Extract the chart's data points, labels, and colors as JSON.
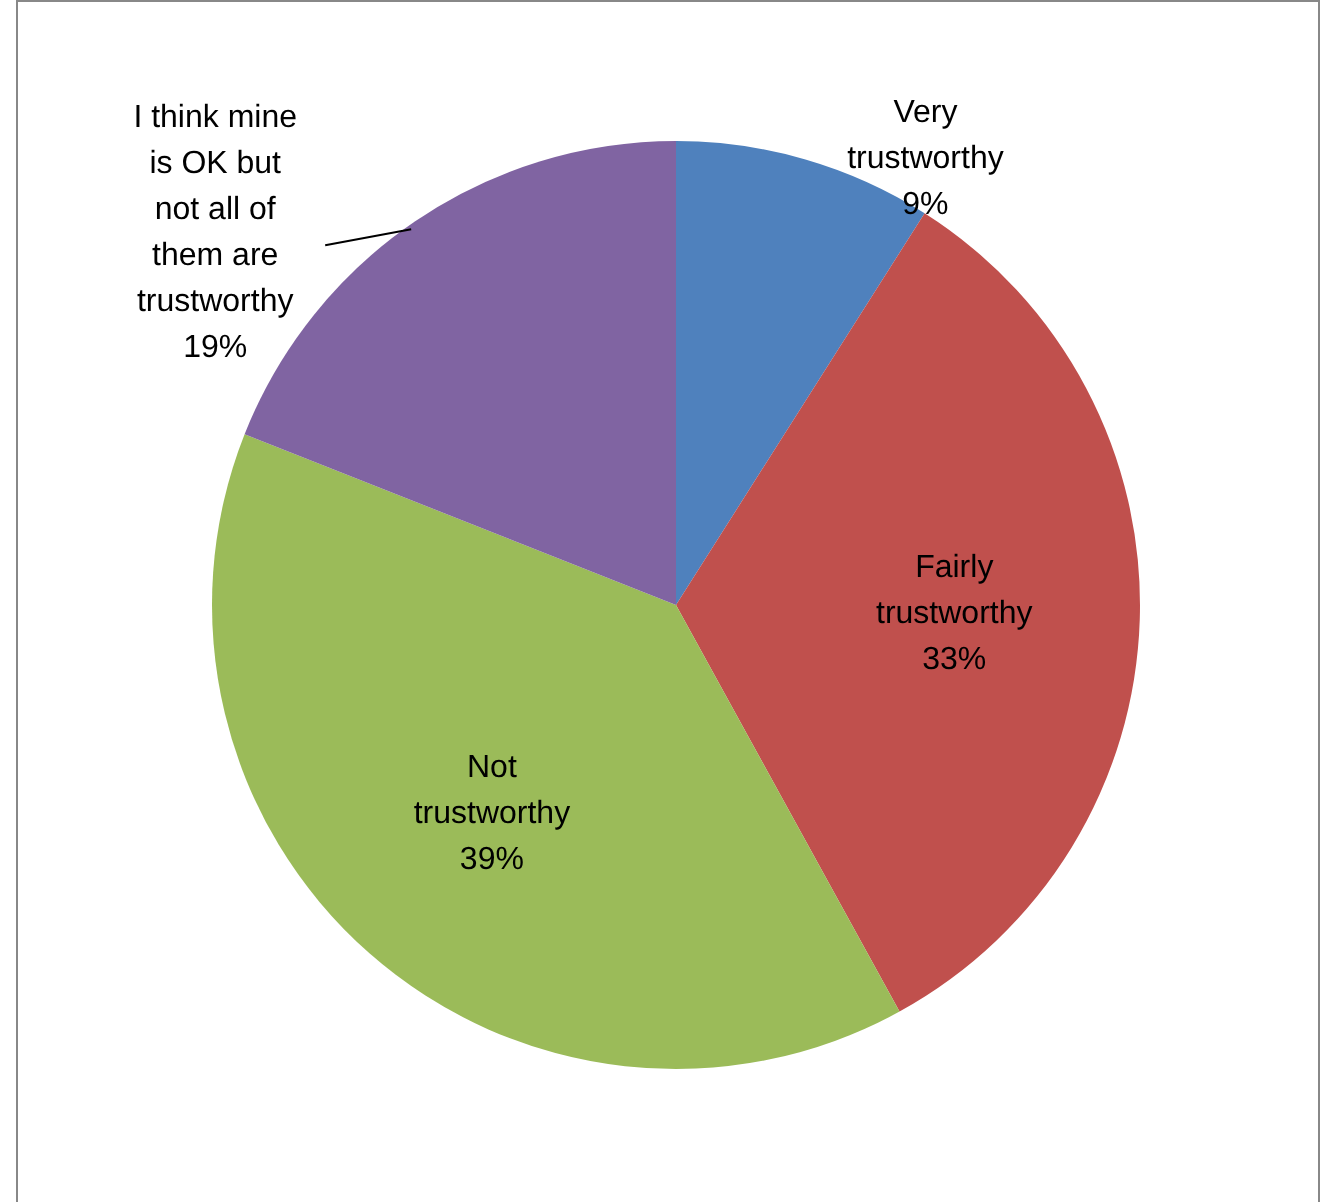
{
  "chart_data": {
    "type": "pie",
    "categories": [
      "Very trustworthy",
      "Fairly trustworthy",
      "Not trustworthy",
      "I think mine is OK but not all of them are trustworthy"
    ],
    "values": [
      9,
      33,
      39,
      19
    ],
    "colors": [
      "#4f81bd",
      "#c0504d",
      "#9bbb59",
      "#8064a2"
    ],
    "value_labels": [
      "9%",
      "33%",
      "39%",
      "19%"
    ],
    "legend": false
  }
}
